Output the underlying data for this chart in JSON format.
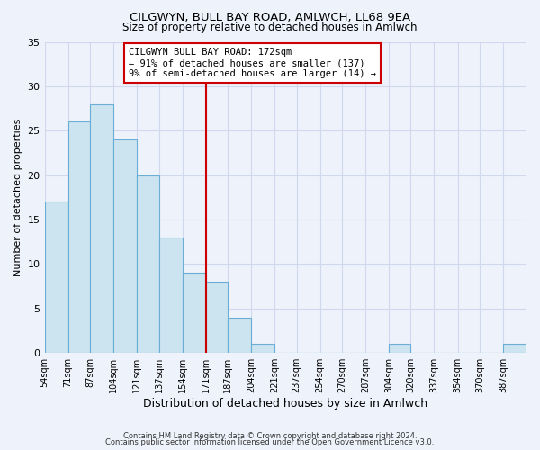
{
  "title": "CILGWYN, BULL BAY ROAD, AMLWCH, LL68 9EA",
  "subtitle": "Size of property relative to detached houses in Amlwch",
  "xlabel": "Distribution of detached houses by size in Amlwch",
  "ylabel": "Number of detached properties",
  "footer1": "Contains HM Land Registry data © Crown copyright and database right 2024.",
  "footer2": "Contains public sector information licensed under the Open Government Licence v3.0.",
  "bin_labels": [
    "54sqm",
    "71sqm",
    "87sqm",
    "104sqm",
    "121sqm",
    "137sqm",
    "154sqm",
    "171sqm",
    "187sqm",
    "204sqm",
    "221sqm",
    "237sqm",
    "254sqm",
    "270sqm",
    "287sqm",
    "304sqm",
    "320sqm",
    "337sqm",
    "354sqm",
    "370sqm",
    "387sqm"
  ],
  "bin_edges": [
    54,
    71,
    87,
    104,
    121,
    137,
    154,
    171,
    187,
    204,
    221,
    237,
    254,
    270,
    287,
    304,
    320,
    337,
    354,
    370,
    387,
    404
  ],
  "values": [
    17,
    26,
    28,
    24,
    20,
    13,
    9,
    8,
    4,
    1,
    0,
    0,
    0,
    0,
    0,
    1,
    0,
    0,
    0,
    0,
    1
  ],
  "bar_color": "#cce3f0",
  "bar_edgecolor": "#6aaed6",
  "reference_line_x": 171,
  "reference_line_color": "#cc0000",
  "annotation_line1": "CILGWYN BULL BAY ROAD: 172sqm",
  "annotation_line2": "← 91% of detached houses are smaller (137)",
  "annotation_line3": "9% of semi-detached houses are larger (14) →",
  "annotation_box_edgecolor": "#cc0000",
  "annotation_box_facecolor": "#ffffff",
  "ylim": [
    0,
    35
  ],
  "yticks": [
    0,
    5,
    10,
    15,
    20,
    25,
    30,
    35
  ],
  "bg_color": "#eef2fb",
  "grid_color": "#d0d8ee"
}
